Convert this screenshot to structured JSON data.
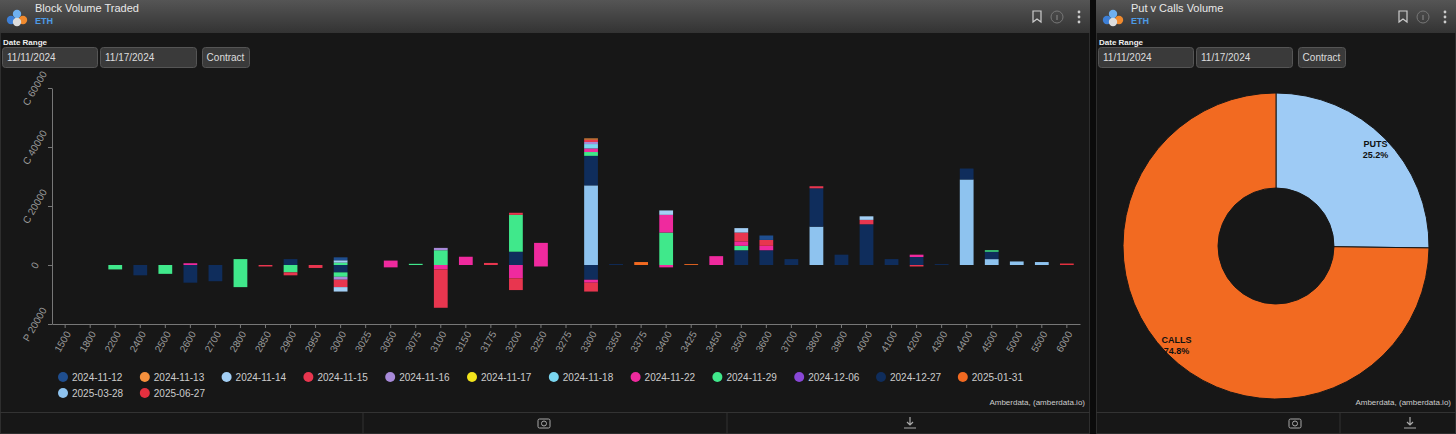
{
  "chart_data": [
    {
      "type": "bar",
      "title": "Block Volume Traded",
      "subtitle": "ETH",
      "annotations": [
        "Date Range",
        "11/11/2024",
        "11/17/2024",
        "Contract",
        "Amberdata, (amberdata.io)"
      ],
      "categories": [
        "1500",
        "1800",
        "2200",
        "2400",
        "2500",
        "2600",
        "2700",
        "2800",
        "2850",
        "2900",
        "2950",
        "3000",
        "3025",
        "3050",
        "3075",
        "3100",
        "3150",
        "3175",
        "3200",
        "3250",
        "3275",
        "3300",
        "3350",
        "3375",
        "3400",
        "3425",
        "3450",
        "3500",
        "3600",
        "3700",
        "3800",
        "3900",
        "4000",
        "4100",
        "4200",
        "4300",
        "4400",
        "4500",
        "5000",
        "5500",
        "6000"
      ],
      "series": [
        {
          "name": "2024-11-12",
          "color": "#1f4e8f",
          "values": [
            0,
            0,
            0,
            0,
            0,
            0,
            0,
            0,
            0,
            0,
            0,
            1000,
            0,
            0,
            0,
            0,
            0,
            0,
            0,
            0,
            0,
            0,
            0,
            0,
            0,
            0,
            0,
            0,
            1500,
            0,
            0,
            0,
            0,
            0,
            0,
            0,
            0,
            0,
            0,
            0,
            0
          ]
        },
        {
          "name": "2024-11-13",
          "color": "#f5903d",
          "values": [
            0,
            0,
            0,
            0,
            0,
            0,
            0,
            0,
            0,
            0,
            0,
            0,
            0,
            0,
            0,
            0,
            0,
            0,
            0,
            0,
            0,
            400,
            0,
            0,
            0,
            0,
            0,
            0,
            0,
            0,
            0,
            0,
            0,
            0,
            0,
            0,
            0,
            0,
            0,
            0,
            0
          ]
        },
        {
          "name": "2024-11-14",
          "color": "#a3cff5",
          "values": [
            0,
            0,
            0,
            0,
            0,
            0,
            0,
            0,
            0,
            0,
            0,
            800,
            0,
            0,
            0,
            0,
            0,
            0,
            0,
            0,
            0,
            0,
            0,
            0,
            1500,
            0,
            0,
            1500,
            0,
            0,
            0,
            0,
            1200,
            0,
            0,
            0,
            0,
            0,
            0,
            0,
            0
          ],
          "put_values": [
            0,
            0,
            0,
            0,
            0,
            0,
            0,
            0,
            0,
            0,
            0,
            -1500,
            0,
            0,
            0,
            0,
            0,
            0,
            0,
            0,
            0,
            0,
            0,
            0,
            0,
            0,
            0,
            0,
            0,
            0,
            0,
            0,
            0,
            0,
            0,
            0,
            0,
            0,
            0,
            0,
            0
          ]
        },
        {
          "name": "2024-11-15",
          "color": "#e8364f",
          "values": [
            0,
            0,
            0,
            0,
            0,
            0,
            0,
            0,
            0,
            0,
            0,
            0,
            0,
            0,
            0,
            0,
            0,
            700,
            700,
            0,
            0,
            800,
            0,
            0,
            0,
            0,
            0,
            3000,
            2000,
            0,
            700,
            0,
            1500,
            0,
            0,
            0,
            0,
            0,
            0,
            0,
            0
          ],
          "put_values": [
            0,
            0,
            0,
            0,
            0,
            0,
            0,
            0,
            -500,
            -1000,
            -1000,
            -2500,
            0,
            0,
            0,
            -13000,
            0,
            0,
            -4000,
            0,
            0,
            -3000,
            0,
            0,
            0,
            0,
            0,
            0,
            0,
            0,
            0,
            0,
            0,
            0,
            -500,
            0,
            0,
            0,
            0,
            0,
            0
          ]
        },
        {
          "name": "2024-11-16",
          "color": "#a88ad9",
          "values": [
            0,
            0,
            0,
            0,
            0,
            0,
            0,
            0,
            0,
            0,
            0,
            0,
            0,
            0,
            0,
            800,
            0,
            0,
            0,
            0,
            0,
            700,
            0,
            0,
            0,
            0,
            0,
            0,
            0,
            0,
            0,
            0,
            0,
            0,
            0,
            0,
            0,
            0,
            0,
            0,
            0
          ],
          "put_values": [
            0,
            0,
            0,
            0,
            0,
            0,
            0,
            0,
            0,
            0,
            0,
            -1000,
            0,
            0,
            0,
            0,
            0,
            0,
            0,
            0,
            0,
            0,
            0,
            0,
            0,
            0,
            0,
            0,
            0,
            0,
            0,
            0,
            0,
            0,
            0,
            0,
            0,
            0,
            0,
            0,
            0
          ]
        },
        {
          "name": "2024-11-17",
          "color": "#f2e41c",
          "values": [
            0,
            0,
            0,
            0,
            0,
            0,
            0,
            0,
            0,
            0,
            0,
            0,
            0,
            0,
            0,
            0,
            0,
            0,
            0,
            0,
            0,
            0,
            0,
            0,
            0,
            0,
            0,
            0,
            0,
            0,
            0,
            0,
            0,
            0,
            0,
            0,
            0,
            0,
            0,
            0,
            0
          ]
        },
        {
          "name": "2024-11-18",
          "color": "#7ad6f0",
          "values": [
            0,
            0,
            0,
            0,
            0,
            0,
            0,
            0,
            0,
            0,
            0,
            0,
            0,
            0,
            0,
            0,
            0,
            0,
            0,
            0,
            0,
            1500,
            0,
            0,
            0,
            0,
            0,
            0,
            0,
            0,
            0,
            0,
            0,
            0,
            0,
            0,
            0,
            0,
            0,
            0,
            0
          ]
        },
        {
          "name": "2024-11-22",
          "color": "#ef2a9e",
          "values": [
            0,
            0,
            0,
            0,
            0,
            600,
            0,
            0,
            0,
            0,
            0,
            0,
            0,
            1500,
            0,
            0,
            2800,
            0,
            0,
            7500,
            0,
            1200,
            0,
            0,
            6000,
            0,
            3000,
            1500,
            1500,
            0,
            0,
            0,
            0,
            0,
            800,
            0,
            0,
            0,
            0,
            0,
            0
          ],
          "put_values": [
            0,
            0,
            0,
            0,
            0,
            0,
            0,
            0,
            0,
            0,
            0,
            0,
            0,
            -800,
            0,
            -1500,
            0,
            0,
            -4500,
            -500,
            0,
            -1000,
            0,
            0,
            -800,
            0,
            0,
            0,
            0,
            0,
            0,
            0,
            0,
            0,
            0,
            0,
            0,
            0,
            0,
            0,
            0
          ]
        },
        {
          "name": "2024-11-29",
          "color": "#40e88b",
          "values": [
            0,
            0,
            0,
            0,
            0,
            0,
            0,
            2000,
            0,
            0,
            0,
            800,
            0,
            0,
            400,
            5000,
            0,
            0,
            12500,
            0,
            0,
            1300,
            0,
            0,
            11000,
            0,
            0,
            1500,
            0,
            0,
            0,
            0,
            0,
            0,
            0,
            0,
            0,
            500,
            0,
            0,
            0
          ],
          "put_values": [
            0,
            0,
            -1500,
            0,
            -3000,
            0,
            0,
            -7500,
            0,
            -2500,
            0,
            -1500,
            0,
            0,
            0,
            0,
            0,
            0,
            0,
            0,
            0,
            0,
            0,
            0,
            0,
            0,
            0,
            0,
            0,
            0,
            0,
            0,
            0,
            0,
            0,
            0,
            0,
            0,
            0,
            0,
            0
          ]
        },
        {
          "name": "2024-12-06",
          "color": "#8847d6",
          "values": [
            0,
            0,
            0,
            0,
            0,
            0,
            0,
            0,
            0,
            0,
            0,
            0,
            0,
            0,
            0,
            0,
            0,
            0,
            0,
            0,
            0,
            0,
            0,
            0,
            0,
            0,
            0,
            0,
            0,
            0,
            0,
            0,
            0,
            0,
            0,
            0,
            0,
            0,
            0,
            0,
            0
          ]
        },
        {
          "name": "2024-12-27",
          "color": "#0f2d5c",
          "values": [
            0,
            0,
            0,
            0,
            0,
            0,
            0,
            0,
            0,
            2000,
            0,
            0,
            0,
            0,
            0,
            0,
            0,
            0,
            4500,
            0,
            0,
            10000,
            300,
            0,
            0,
            0,
            0,
            5000,
            5000,
            2000,
            13000,
            3500,
            13800,
            2000,
            2700,
            300,
            3700,
            2500,
            0,
            0,
            0
          ],
          "put_values": [
            0,
            0,
            0,
            -3500,
            0,
            -6000,
            -5500,
            0,
            0,
            0,
            0,
            -2500,
            0,
            0,
            0,
            0,
            0,
            0,
            0,
            0,
            0,
            -5000,
            0,
            0,
            0,
            0,
            0,
            0,
            0,
            0,
            0,
            0,
            0,
            0,
            0,
            0,
            0,
            0,
            0,
            0,
            0
          ]
        },
        {
          "name": "2025-01-31",
          "color": "#f26a21",
          "values": [
            0,
            0,
            0,
            0,
            0,
            0,
            0,
            0,
            0,
            0,
            0,
            0,
            0,
            0,
            0,
            0,
            0,
            0,
            0,
            0,
            0,
            0,
            0,
            1000,
            0,
            300,
            0,
            0,
            0,
            0,
            0,
            0,
            0,
            0,
            0,
            0,
            0,
            0,
            0,
            0,
            0
          ]
        },
        {
          "name": "2025-03-28",
          "color": "#8ec3ef",
          "values": [
            0,
            0,
            0,
            0,
            0,
            0,
            0,
            0,
            0,
            0,
            0,
            0,
            0,
            0,
            0,
            0,
            0,
            0,
            0,
            0,
            0,
            27000,
            0,
            0,
            0,
            0,
            0,
            0,
            0,
            0,
            13000,
            0,
            0,
            0,
            0,
            0,
            29000,
            2000,
            1200,
            1000,
            0
          ]
        },
        {
          "name": "2025-06-27",
          "color": "#e3303f",
          "values": [
            0,
            0,
            0,
            0,
            0,
            0,
            0,
            0,
            0,
            0,
            0,
            0,
            0,
            0,
            0,
            0,
            0,
            0,
            0,
            0,
            0,
            0,
            0,
            0,
            0,
            0,
            0,
            0,
            0,
            0,
            0,
            0,
            0,
            0,
            0,
            0,
            0,
            0,
            0,
            0,
            500
          ]
        }
      ],
      "ylim": [
        -20000,
        60000
      ],
      "yticks": [
        {
          "value": -20000,
          "label": "P 20000"
        },
        0,
        {
          "value": 20000,
          "label": "C 20000"
        },
        {
          "value": 40000,
          "label": "C 40000"
        },
        {
          "value": 60000,
          "label": "C 60000"
        }
      ],
      "stacked": true,
      "legend": "bottom",
      "grid": false
    },
    {
      "type": "donut",
      "title": "Put v Calls Volume",
      "subtitle": "ETH",
      "annotations": [
        "Date Range",
        "11/11/2024",
        "11/17/2024",
        "Contract",
        "Amberdata, (amberdata.io)"
      ],
      "categories": [
        "PUTS",
        "CALLS"
      ],
      "values": [
        25.2,
        74.8
      ],
      "value_labels": [
        "25.2%",
        "74.8%"
      ],
      "colors": [
        "#9ecbf5",
        "#f26a21"
      ],
      "data_labels": true
    }
  ]
}
